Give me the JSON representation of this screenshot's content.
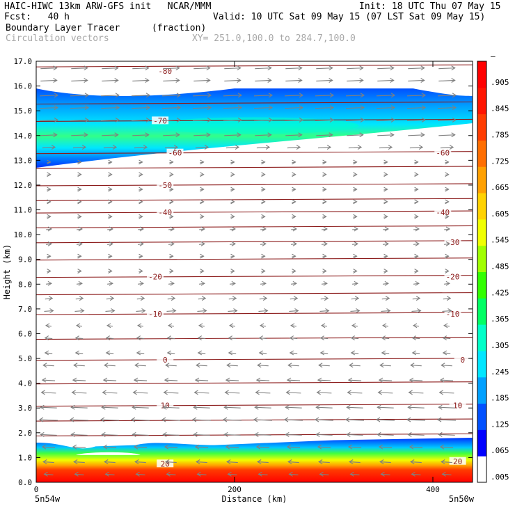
{
  "header": {
    "model_line": "HAIC-HIWC 13km ARW-GFS init   NCAR/MMM",
    "init_line": "Init: 18 UTC Thu 07 May 15",
    "fcst_line": "Fcst:   40 h",
    "valid_line": "Valid: 10 UTC Sat 09 May 15 (07 LST Sat 09 May 15)",
    "field_name": "Boundary Layer Tracer",
    "field_unit": "(fraction)",
    "vector_label": "Circulation vectors",
    "xy_label": "XY= 251.0,100.0 to 284.7,100.0"
  },
  "colors": {
    "contour": "#8b1a1a",
    "vector": "#808080",
    "scale": [
      "#ffffff",
      "#0000ff",
      "#0050ff",
      "#00a0ff",
      "#00e6ff",
      "#00ffc8",
      "#00ff64",
      "#32ff00",
      "#a0ff00",
      "#f0ff00",
      "#ffd200",
      "#ffa000",
      "#ff6e00",
      "#ff3c00",
      "#ff1400",
      "#ff0000"
    ]
  },
  "chart_data": {
    "type": "heatmap",
    "title": "Boundary Layer Tracer",
    "xlabel": "Distance (km)",
    "ylabel": "Height (km)",
    "xlim": [
      0,
      440
    ],
    "ylim": [
      0.0,
      17.0
    ],
    "x_ticks": [
      "0",
      "200",
      "400"
    ],
    "x_tick_values": [
      0,
      200,
      400
    ],
    "x_end_labels": [
      "5n54w",
      "5n50w"
    ],
    "y_ticks": [
      "0.0",
      "1.0",
      "2.0",
      "3.0",
      "4.0",
      "5.0",
      "6.0",
      "7.0",
      "8.0",
      "9.0",
      "10.0",
      "11.0",
      "12.0",
      "13.0",
      "14.0",
      "15.0",
      "16.0",
      "17.0"
    ],
    "colorbar_labels": [
      ".005",
      ".065",
      ".125",
      ".185",
      ".245",
      ".305",
      ".365",
      ".425",
      ".485",
      ".545",
      ".605",
      ".665",
      ".725",
      ".785",
      ".845",
      ".905",
      "–"
    ],
    "contours": [
      {
        "label": "-80",
        "y": 16.6,
        "x": 130
      },
      {
        "label": "-70",
        "y": 14.6,
        "x": 125
      },
      {
        "label": "-60",
        "y": 13.3,
        "x": 140
      },
      {
        "label": "-60",
        "y": 13.3,
        "x": 410
      },
      {
        "label": "-50",
        "y": 12.0,
        "x": 130
      },
      {
        "label": "-40",
        "y": 10.9,
        "x": 130
      },
      {
        "label": "-40",
        "y": 10.9,
        "x": 410
      },
      {
        "label": "-30",
        "y": 9.7,
        "x": 420
      },
      {
        "label": "-20",
        "y": 8.3,
        "x": 120
      },
      {
        "label": "-20",
        "y": 8.3,
        "x": 420
      },
      {
        "label": "-10",
        "y": 6.8,
        "x": 120
      },
      {
        "label": "-10",
        "y": 6.8,
        "x": 420
      },
      {
        "label": "0",
        "y": 4.95,
        "x": 130
      },
      {
        "label": "0",
        "y": 4.95,
        "x": 430
      },
      {
        "label": "10",
        "y": 3.1,
        "x": 130
      },
      {
        "label": "10",
        "y": 3.1,
        "x": 425
      },
      {
        "label": "20",
        "y": 0.75,
        "x": 130
      },
      {
        "label": "20",
        "y": 0.85,
        "x": 425
      }
    ],
    "contour_levels_y": [
      16.8,
      15.3,
      14.6,
      13.3,
      12.7,
      12.0,
      11.4,
      10.9,
      10.3,
      9.7,
      9.0,
      8.3,
      7.6,
      6.8,
      5.8,
      4.95,
      4.0,
      3.1,
      2.5,
      1.9
    ],
    "vector_rows_y": [
      16.7,
      16.2,
      15.6,
      15.1,
      14.6,
      14.0,
      13.5,
      12.9,
      12.4,
      11.8,
      11.3,
      10.7,
      10.2,
      9.6,
      9.1,
      8.5,
      8.0,
      7.4,
      6.9,
      6.3,
      5.8,
      5.2,
      4.7,
      4.1,
      3.6,
      3.0,
      2.5,
      1.9,
      1.4,
      0.8,
      0.3
    ],
    "vector_u": [
      0.9,
      0.9,
      1.0,
      1.0,
      1.0,
      0.9,
      0.7,
      0.2,
      0.2,
      0.2,
      0.2,
      0.2,
      0.3,
      0.3,
      0.2,
      0.2,
      0.3,
      0.4,
      0.5,
      -0.3,
      -0.4,
      -0.4,
      -0.6,
      -0.7,
      -0.8,
      -0.9,
      -1.0,
      -0.9,
      -0.7,
      -0.6,
      -0.5
    ],
    "upper_band": {
      "top_left": 15.9,
      "top_right": 15.6,
      "bottom_left": 12.7,
      "bottom_right": 14.5
    },
    "lower_band": {
      "top_left": 1.6,
      "top_right": 1.8,
      "bottom": 0.0
    }
  }
}
